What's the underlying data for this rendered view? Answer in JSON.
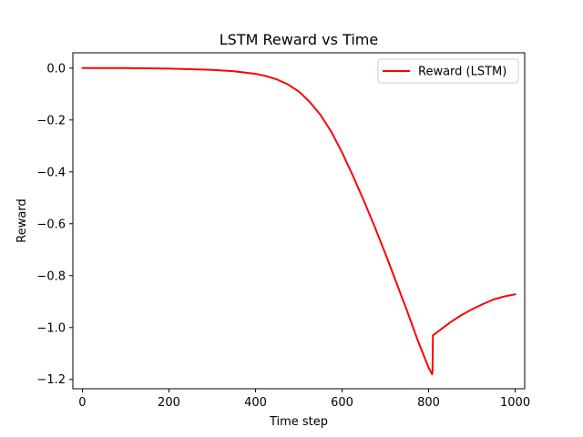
{
  "chart_data": {
    "type": "line",
    "title": "LSTM Reward vs Time",
    "xlabel": "Time step",
    "ylabel": "Reward",
    "xlim": [
      -22,
      1022
    ],
    "ylim": [
      -1.236,
      0.059
    ],
    "xticks": [
      0,
      200,
      400,
      600,
      800,
      1000
    ],
    "yticks": [
      0.0,
      -0.2,
      -0.4,
      -0.6,
      -0.8,
      -1.0,
      -1.2
    ],
    "xtick_labels": [
      "0",
      "200",
      "400",
      "600",
      "800",
      "1000"
    ],
    "ytick_labels": [
      "0.0",
      "−0.2",
      "−0.4",
      "−0.6",
      "−0.8",
      "−1.0",
      "−1.2"
    ],
    "grid": false,
    "legend_position": "top-right",
    "series": [
      {
        "name": "Reward (LSTM)",
        "color": "#ff0000",
        "x": [
          0,
          100,
          200,
          250,
          300,
          350,
          400,
          425,
          450,
          475,
          500,
          525,
          550,
          575,
          600,
          625,
          650,
          675,
          700,
          725,
          750,
          775,
          800,
          808,
          809,
          810,
          830,
          850,
          875,
          900,
          925,
          950,
          975,
          1000
        ],
        "y": [
          0.0,
          0.0,
          -0.002,
          -0.004,
          -0.007,
          -0.012,
          -0.022,
          -0.031,
          -0.044,
          -0.063,
          -0.09,
          -0.13,
          -0.18,
          -0.245,
          -0.325,
          -0.415,
          -0.51,
          -0.61,
          -0.715,
          -0.825,
          -0.935,
          -1.05,
          -1.155,
          -1.18,
          -1.17,
          -1.03,
          -1.005,
          -0.98,
          -0.953,
          -0.93,
          -0.91,
          -0.892,
          -0.88,
          -0.872
        ]
      }
    ]
  }
}
